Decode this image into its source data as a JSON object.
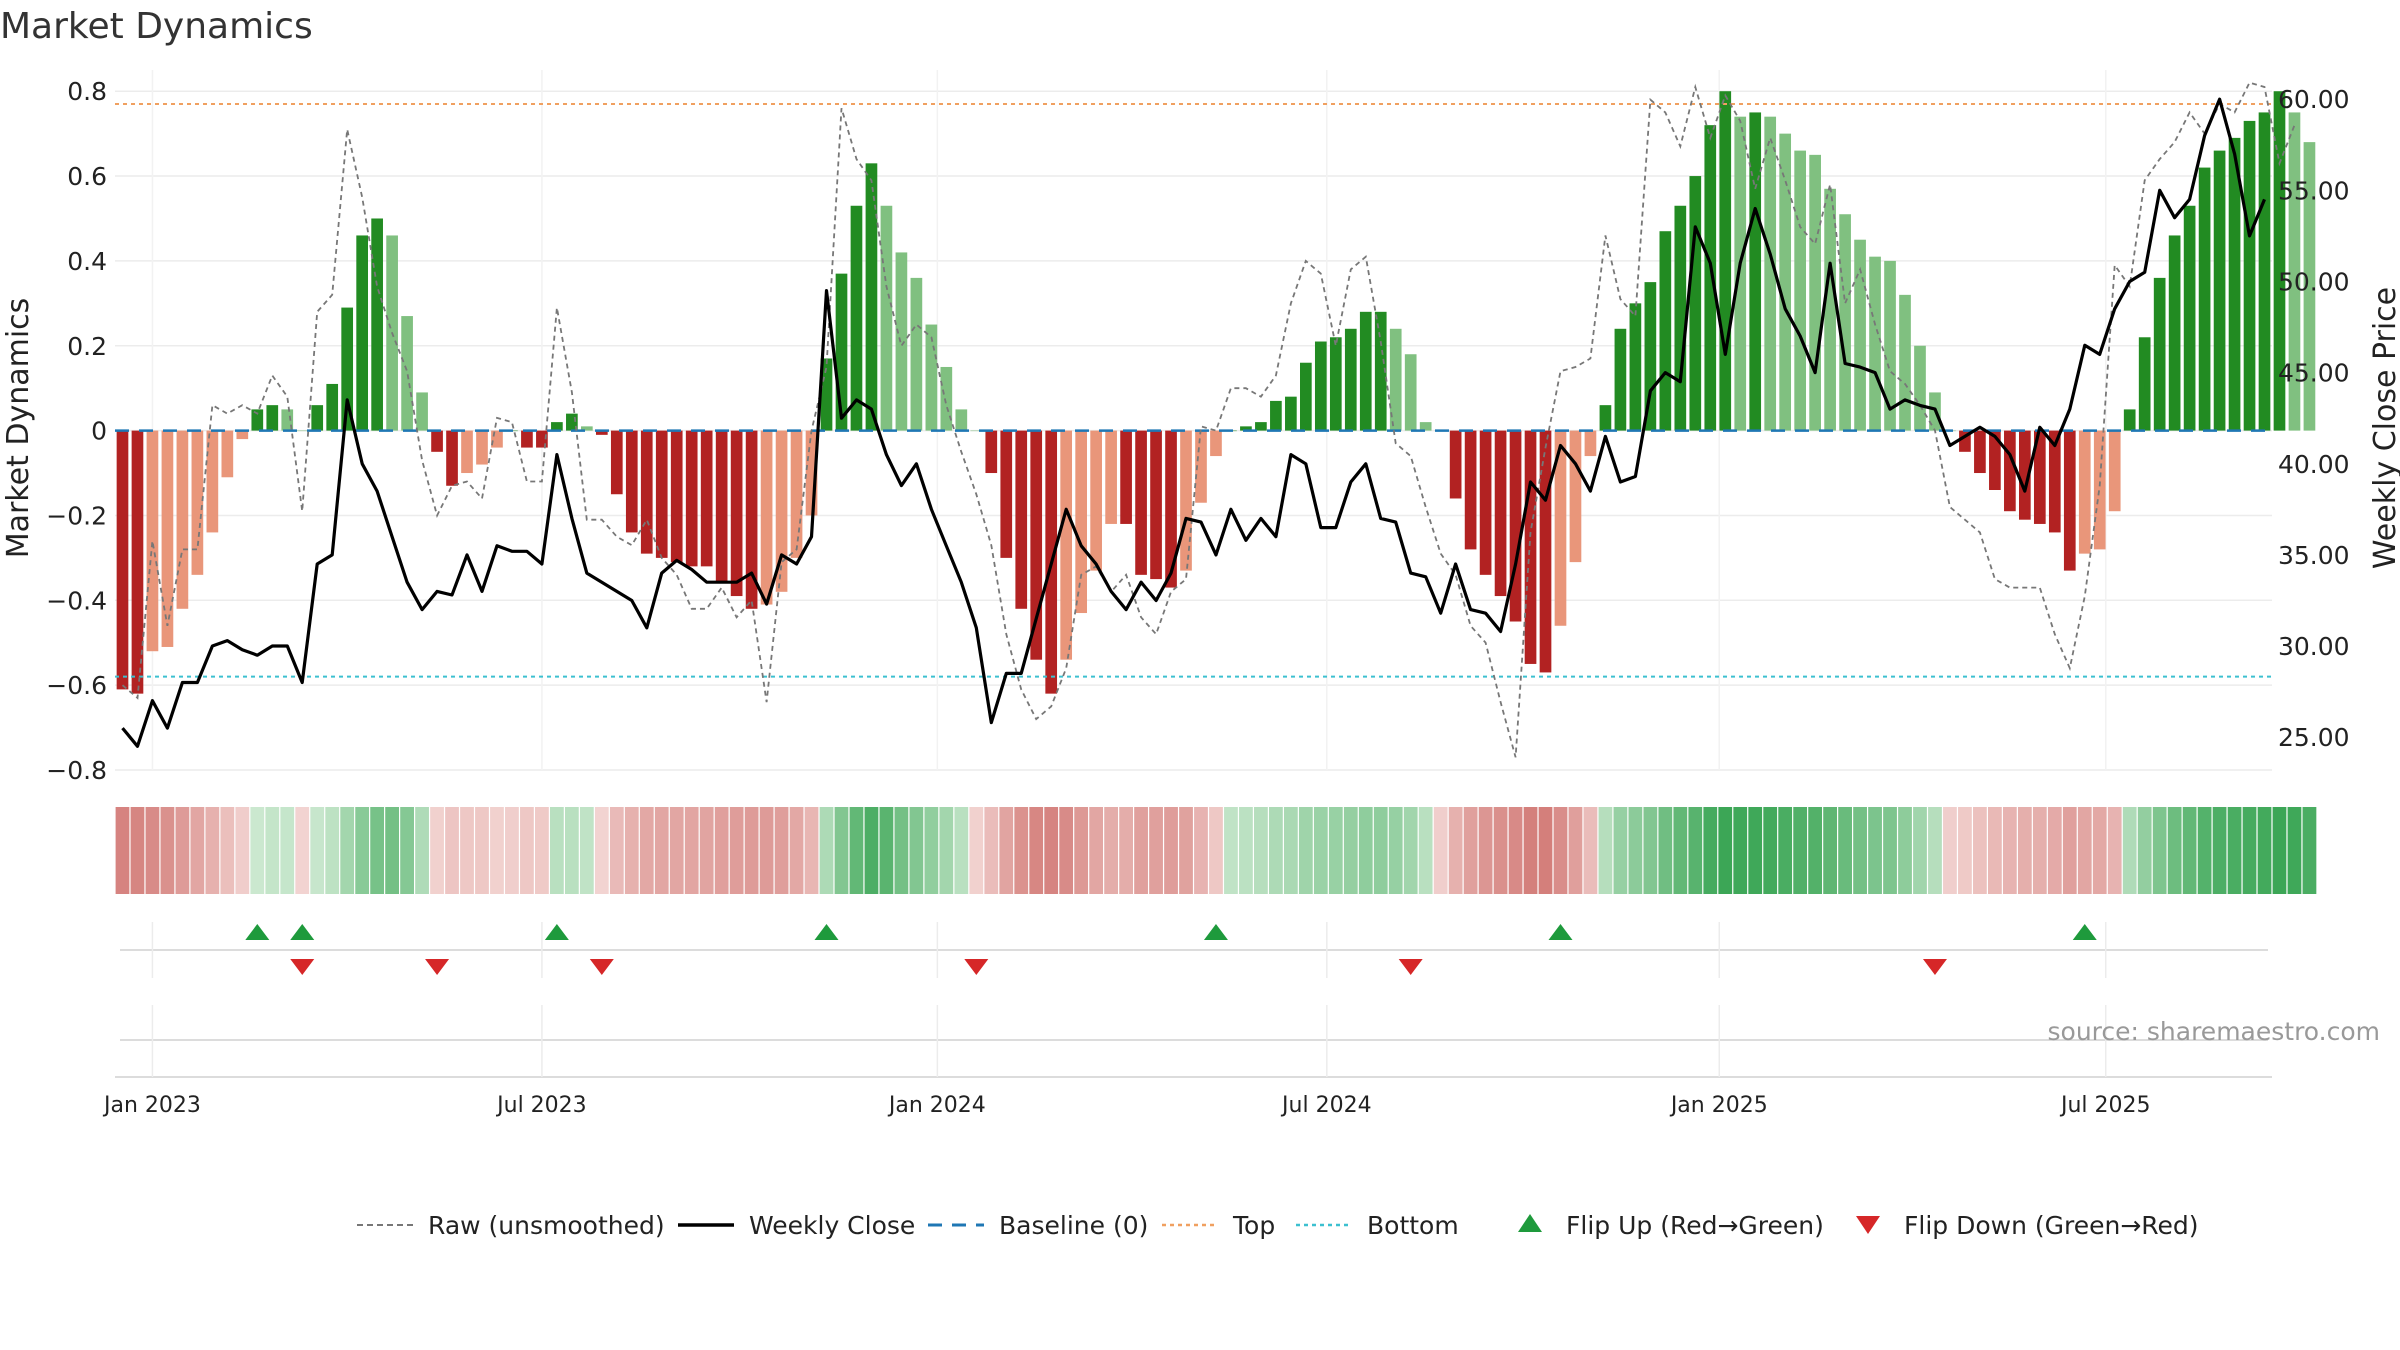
{
  "chart_data": {
    "type": "bar",
    "title": "Market Dynamics",
    "ylabel_left": "Market Dynamics",
    "ylabel_right": "Weekly Close Price",
    "source": "source: sharemaestro.com",
    "ylim_left": [
      -0.8,
      0.85
    ],
    "ylim_right": [
      23.2,
      61.6
    ],
    "yticks_left": [
      "0.8",
      "0.6",
      "0.4",
      "0.2",
      "0",
      "−0.2",
      "−0.4",
      "−0.6",
      "−0.8"
    ],
    "yticks_left_values": [
      0.8,
      0.6,
      0.4,
      0.2,
      0,
      -0.2,
      -0.4,
      -0.6,
      -0.8
    ],
    "yticks_right": [
      "60.00",
      "55.00",
      "50.00",
      "45.00",
      "40.00",
      "35.00",
      "30.00",
      "25.00"
    ],
    "yticks_right_values": [
      60,
      55,
      50,
      45,
      40,
      35,
      30,
      25
    ],
    "xticks": [
      "Jan 2023",
      "Jul 2023",
      "Jan 2024",
      "Jul 2024",
      "Jan 2025",
      "Jul 2025"
    ],
    "xtick_weeks": [
      2,
      28,
      54.4,
      80.4,
      106.6,
      132.4
    ],
    "top_line": 0.77,
    "bottom_line": -0.58,
    "baseline": 0,
    "week_count": 144,
    "series": [
      {
        "name": "Market Dynamics (smoothed)",
        "values": [
          -0.61,
          -0.62,
          -0.52,
          -0.51,
          -0.42,
          -0.34,
          -0.24,
          -0.11,
          -0.02,
          0.05,
          0.06,
          0.05,
          0.0,
          0.06,
          0.11,
          0.29,
          0.46,
          0.5,
          0.46,
          0.27,
          0.09,
          -0.05,
          -0.13,
          -0.1,
          -0.08,
          -0.04,
          0.0,
          -0.04,
          -0.04,
          0.02,
          0.04,
          0.01,
          -0.01,
          -0.15,
          -0.24,
          -0.29,
          -0.3,
          -0.31,
          -0.32,
          -0.32,
          -0.36,
          -0.39,
          -0.42,
          -0.41,
          -0.38,
          -0.3,
          -0.2,
          0.17,
          0.37,
          0.53,
          0.63,
          0.53,
          0.42,
          0.36,
          0.25,
          0.15,
          0.05,
          0.0,
          -0.1,
          -0.3,
          -0.42,
          -0.54,
          -0.62,
          -0.54,
          -0.43,
          -0.33,
          -0.22,
          -0.22,
          -0.34,
          -0.35,
          -0.37,
          -0.33,
          -0.17,
          -0.06,
          0.0,
          0.01,
          0.02,
          0.07,
          0.08,
          0.16,
          0.21,
          0.22,
          0.24,
          0.28,
          0.28,
          0.24,
          0.18,
          0.02,
          0.0,
          -0.16,
          -0.28,
          -0.34,
          -0.39,
          -0.45,
          -0.55,
          -0.57,
          -0.46,
          -0.31,
          -0.06,
          0.06,
          0.24,
          0.3,
          0.35,
          0.47,
          0.53,
          0.6,
          0.72,
          0.8,
          0.74,
          0.75,
          0.74,
          0.7,
          0.66,
          0.65,
          0.57,
          0.51,
          0.45,
          0.41,
          0.4,
          0.32,
          0.2,
          0.09,
          0.0,
          -0.05,
          -0.1,
          -0.14,
          -0.19,
          -0.21,
          -0.22,
          -0.24,
          -0.33,
          -0.29,
          -0.28,
          -0.19,
          0.05,
          0.22,
          0.36,
          0.46,
          0.53,
          0.62,
          0.66,
          0.69,
          0.73,
          0.75,
          0.8,
          0.75,
          0.68
        ]
      },
      {
        "name": "Raw (unsmoothed)",
        "values": [
          -0.6,
          -0.63,
          -0.26,
          -0.46,
          -0.28,
          -0.28,
          0.06,
          0.04,
          0.06,
          0.04,
          0.13,
          0.08,
          -0.19,
          0.28,
          0.32,
          0.71,
          0.55,
          0.34,
          0.23,
          0.14,
          -0.07,
          -0.2,
          -0.13,
          -0.12,
          -0.16,
          0.03,
          0.02,
          -0.12,
          -0.12,
          0.29,
          0.09,
          -0.21,
          -0.21,
          -0.25,
          -0.27,
          -0.21,
          -0.3,
          -0.34,
          -0.42,
          -0.42,
          -0.37,
          -0.44,
          -0.4,
          -0.64,
          -0.31,
          -0.28,
          0.0,
          0.15,
          0.76,
          0.64,
          0.59,
          0.34,
          0.2,
          0.25,
          0.22,
          0.06,
          -0.05,
          -0.15,
          -0.27,
          -0.48,
          -0.61,
          -0.68,
          -0.65,
          -0.56,
          -0.34,
          -0.32,
          -0.38,
          -0.34,
          -0.44,
          -0.48,
          -0.38,
          -0.35,
          0.01,
          0.0,
          0.1,
          0.1,
          0.08,
          0.13,
          0.3,
          0.4,
          0.37,
          0.2,
          0.38,
          0.41,
          0.21,
          -0.03,
          -0.06,
          -0.18,
          -0.29,
          -0.34,
          -0.46,
          -0.5,
          -0.64,
          -0.77,
          -0.24,
          -0.04,
          0.14,
          0.15,
          0.17,
          0.46,
          0.31,
          0.27,
          0.78,
          0.75,
          0.67,
          0.81,
          0.69,
          0.79,
          0.73,
          0.57,
          0.69,
          0.59,
          0.48,
          0.44,
          0.58,
          0.3,
          0.38,
          0.25,
          0.14,
          0.11,
          0.06,
          0.0,
          -0.18,
          -0.21,
          -0.24,
          -0.35,
          -0.37,
          -0.37,
          -0.37,
          -0.48,
          -0.56,
          -0.39,
          -0.13,
          0.39,
          0.34,
          0.59,
          0.64,
          0.68,
          0.75,
          0.7,
          0.77,
          0.75,
          0.82,
          0.81,
          0.63,
          0.72
        ]
      },
      {
        "name": "Weekly Close",
        "values": [
          25.5,
          24.5,
          27.0,
          25.5,
          28.0,
          28.0,
          30.0,
          30.3,
          29.8,
          29.5,
          30.0,
          30.0,
          28.0,
          34.5,
          35.0,
          43.5,
          40.0,
          38.5,
          36.0,
          33.5,
          32.0,
          33.0,
          32.8,
          35.0,
          33.0,
          35.5,
          35.2,
          35.2,
          34.5,
          40.5,
          37.0,
          34.0,
          33.5,
          33.0,
          32.5,
          31.0,
          34.0,
          34.7,
          34.2,
          33.5,
          33.5,
          33.5,
          34.0,
          32.3,
          35.0,
          34.5,
          36.0,
          49.5,
          42.5,
          43.5,
          43.0,
          40.5,
          38.8,
          40.0,
          37.5,
          35.5,
          33.5,
          31.0,
          25.8,
          28.5,
          28.5,
          31.5,
          34.5,
          37.5,
          35.5,
          34.5,
          33.0,
          32.0,
          33.5,
          32.5,
          34.0,
          37.0,
          36.8,
          35.0,
          37.5,
          35.8,
          37.0,
          36.0,
          40.5,
          40.0,
          36.5,
          36.5,
          39.0,
          40.0,
          37.0,
          36.8,
          34.0,
          33.8,
          31.8,
          34.5,
          32.0,
          31.8,
          30.8,
          34.5,
          39.0,
          38.0,
          41.0,
          40.0,
          38.5,
          41.5,
          39.0,
          39.3,
          44.0,
          45.0,
          44.5,
          53.0,
          51.0,
          46.0,
          51.0,
          54.0,
          51.5,
          48.5,
          47.0,
          45.0,
          51.0,
          45.5,
          45.3,
          45.0,
          43.0,
          43.5,
          43.2,
          43.0,
          41.0,
          41.5,
          42.0,
          41.5,
          40.5,
          38.5,
          42.0,
          41.0,
          43.0,
          46.5,
          46.0,
          48.5,
          50.0,
          50.5,
          55.0,
          53.5,
          54.5,
          58.0,
          60.0,
          57.0,
          52.5,
          54.5
        ]
      }
    ],
    "heat_strip": [
      -0.81,
      -0.79,
      -0.74,
      -0.69,
      -0.6,
      -0.5,
      -0.4,
      -0.28,
      -0.15,
      0.1,
      0.14,
      0.13,
      -0.1,
      0.12,
      0.18,
      0.33,
      0.48,
      0.58,
      0.6,
      0.5,
      0.26,
      -0.12,
      -0.22,
      -0.2,
      -0.2,
      -0.12,
      -0.14,
      -0.2,
      -0.18,
      0.2,
      0.2,
      0.16,
      -0.1,
      -0.32,
      -0.4,
      -0.48,
      -0.5,
      -0.5,
      -0.51,
      -0.52,
      -0.56,
      -0.58,
      -0.6,
      -0.6,
      -0.57,
      -0.48,
      -0.36,
      0.27,
      0.52,
      0.7,
      0.82,
      0.75,
      0.6,
      0.52,
      0.43,
      0.33,
      0.2,
      -0.12,
      -0.3,
      -0.52,
      -0.68,
      -0.78,
      -0.8,
      -0.74,
      -0.62,
      -0.5,
      -0.44,
      -0.44,
      -0.55,
      -0.55,
      -0.58,
      -0.54,
      -0.38,
      -0.2,
      0.16,
      0.19,
      0.22,
      0.27,
      0.29,
      0.35,
      0.38,
      0.39,
      0.41,
      0.44,
      0.44,
      0.4,
      0.34,
      0.2,
      -0.14,
      -0.4,
      -0.55,
      -0.64,
      -0.7,
      -0.75,
      -0.84,
      -0.85,
      -0.72,
      -0.56,
      -0.3,
      0.22,
      0.4,
      0.46,
      0.52,
      0.62,
      0.7,
      0.76,
      0.86,
      0.92,
      0.9,
      0.9,
      0.88,
      0.84,
      0.8,
      0.79,
      0.72,
      0.66,
      0.6,
      0.55,
      0.54,
      0.45,
      0.34,
      0.22,
      -0.14,
      -0.18,
      -0.26,
      -0.33,
      -0.38,
      -0.42,
      -0.42,
      -0.46,
      -0.55,
      -0.5,
      -0.48,
      -0.38,
      0.26,
      0.42,
      0.54,
      0.64,
      0.7,
      0.78,
      0.82,
      0.84,
      0.86,
      0.88,
      0.92,
      0.9,
      0.84
    ],
    "flip_up_weeks": [
      9,
      12,
      29,
      47,
      73,
      96,
      131
    ],
    "flip_down_weeks": [
      12,
      21,
      32,
      57,
      86,
      121
    ],
    "legend": [
      {
        "label": "Raw (unsmoothed)",
        "style": "dashed",
        "color": "#777777"
      },
      {
        "label": "Weekly Close",
        "style": "solid",
        "color": "#000000"
      },
      {
        "label": "Baseline (0)",
        "style": "dashed",
        "color": "#1f77b4"
      },
      {
        "label": "Top",
        "style": "dotted",
        "color": "#f0a060"
      },
      {
        "label": "Bottom",
        "style": "dotted",
        "color": "#3cc0d0"
      },
      {
        "label": "Flip Up (Red→Green)",
        "style": "triangle-up",
        "color": "#1e9a3c"
      },
      {
        "label": "Flip Down (Green→Red)",
        "style": "triangle-down",
        "color": "#d62728"
      }
    ],
    "colors": {
      "strong_green": "#228b22",
      "light_green": "#80c080",
      "strong_red": "#b22222",
      "light_red": "#e9967a",
      "top_line": "#f0a060",
      "bottom_line": "#3cc0d0",
      "baseline": "#1f77b4",
      "raw": "#777777",
      "close": "#000000"
    }
  }
}
